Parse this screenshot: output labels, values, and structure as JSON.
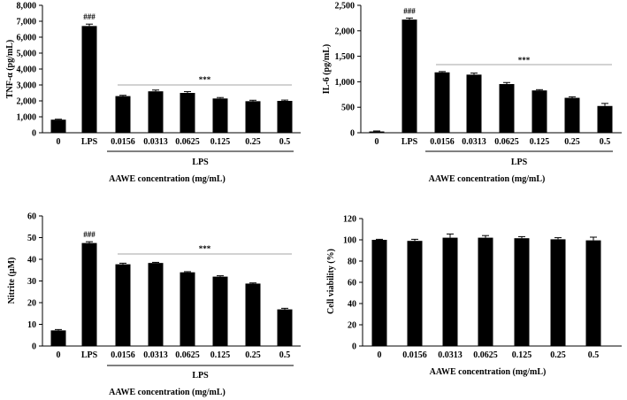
{
  "chart_data": [
    {
      "type": "bar",
      "name": "tnf",
      "ylabel": "TNF-α (pg/mL)",
      "xlabel": "AAWE concentration (mg/mL)",
      "group_label": "LPS",
      "categories": [
        "0",
        "LPS",
        "0.0156",
        "0.0313",
        "0.0625",
        "0.125",
        "0.25",
        "0.5"
      ],
      "values": [
        820,
        6700,
        2300,
        2600,
        2500,
        2150,
        1980,
        2000
      ],
      "errors": [
        30,
        120,
        50,
        80,
        80,
        60,
        60,
        50
      ],
      "ylim": [
        0,
        8000
      ],
      "yticks": [
        "0",
        "1,000",
        "2,000",
        "3,000",
        "4,000",
        "5,000",
        "6,000",
        "7,000",
        "8,000"
      ],
      "marker_hash": "###",
      "marker_star": "***"
    },
    {
      "type": "bar",
      "name": "il6",
      "ylabel": "IL-6 (pg/mL)",
      "xlabel": "AAWE concentration (mg/mL)",
      "group_label": "LPS",
      "categories": [
        "0",
        "LPS",
        "0.0156",
        "0.0313",
        "0.0625",
        "0.125",
        "0.25",
        "0.5"
      ],
      "values": [
        25,
        2220,
        1185,
        1140,
        955,
        830,
        685,
        525
      ],
      "errors": [
        10,
        30,
        15,
        30,
        30,
        15,
        20,
        50
      ],
      "ylim": [
        0,
        2500
      ],
      "yticks": [
        "0",
        "500",
        "1,000",
        "1,500",
        "2,000",
        "2,500"
      ],
      "marker_hash": "###",
      "marker_star": "***"
    },
    {
      "type": "bar",
      "name": "nitrite",
      "ylabel": "Nitrite (µM)",
      "xlabel": "AAWE concentration (mg/mL)",
      "group_label": "LPS",
      "categories": [
        "0",
        "LPS",
        "0.0156",
        "0.0313",
        "0.0625",
        "0.125",
        "0.25",
        "0.5"
      ],
      "values": [
        7.2,
        47.5,
        37.7,
        38.3,
        34.0,
        32.0,
        28.8,
        16.9
      ],
      "errors": [
        0.4,
        0.6,
        0.5,
        0.3,
        0.3,
        0.4,
        0.3,
        0.5
      ],
      "ylim": [
        0,
        60
      ],
      "yticks": [
        "0",
        "10",
        "20",
        "30",
        "40",
        "50",
        "60"
      ],
      "marker_hash": "###",
      "marker_star": "***"
    },
    {
      "type": "bar",
      "name": "viability",
      "ylabel": "Cell viability (%)",
      "xlabel": "AAWE concentration (mg/mL)",
      "group_label": "",
      "categories": [
        "0",
        "0.0156",
        "0.0313",
        "0.0625",
        "0.125",
        "0.25",
        "0.5"
      ],
      "values": [
        100,
        99,
        102,
        102,
        101.5,
        100.5,
        99.5
      ],
      "errors": [
        0.5,
        1.5,
        3.5,
        2.0,
        1.5,
        1.5,
        3.0
      ],
      "ylim": [
        0,
        120
      ],
      "yticks": [
        "0",
        "20",
        "40",
        "60",
        "80",
        "100",
        "120"
      ],
      "marker_hash": "",
      "marker_star": ""
    }
  ]
}
